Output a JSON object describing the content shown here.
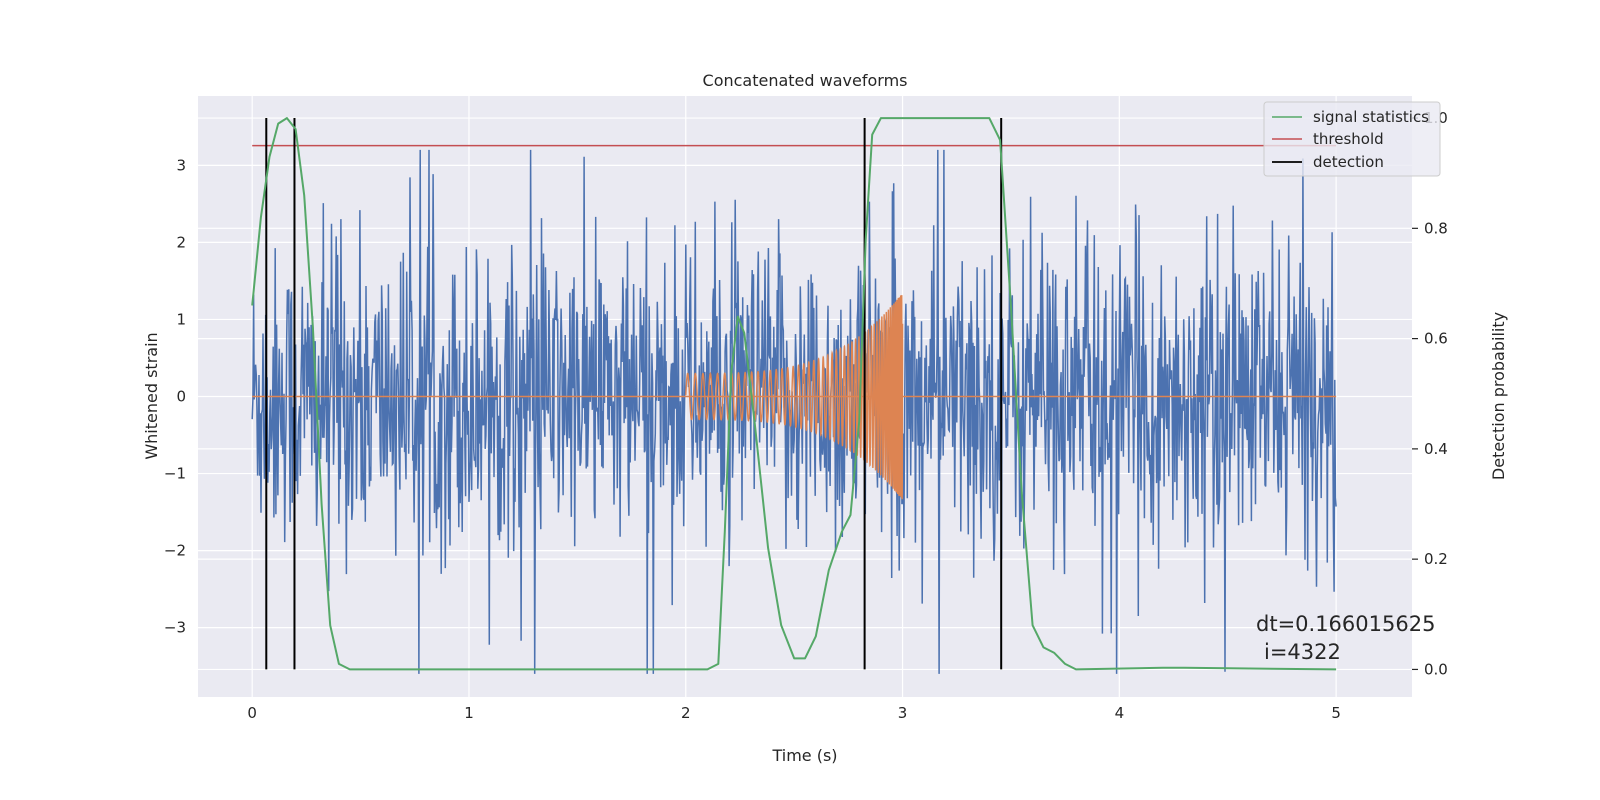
{
  "chart_data": {
    "type": "line",
    "title": "Concatenated waveforms",
    "xlabel": "Time (s)",
    "ylabel": "Whitened strain",
    "y2label": "Detection probability",
    "xlim": [
      -0.25,
      5.35
    ],
    "ylim": [
      -3.9,
      3.9
    ],
    "y2lim": [
      -0.05,
      1.04
    ],
    "xticks": [
      0,
      1,
      2,
      3,
      4,
      5
    ],
    "yticks": [
      -3,
      -2,
      -1,
      0,
      1,
      2,
      3
    ],
    "y2ticks": [
      0.0,
      0.2,
      0.4,
      0.6,
      0.8,
      1.0
    ],
    "xtick_labels": [
      "0",
      "1",
      "2",
      "3",
      "4",
      "5"
    ],
    "ytick_labels": [
      "−3",
      "−2",
      "−1",
      "0",
      "1",
      "2",
      "3"
    ],
    "y2tick_labels": [
      "0.0",
      "0.2",
      "0.4",
      "0.6",
      "0.8",
      "1.0"
    ],
    "grid": true,
    "legend_position": "top-right",
    "legend": [
      {
        "label": "signal statistics",
        "color": "#55a868"
      },
      {
        "label": "threshold",
        "color": "#c44e52"
      },
      {
        "label": "detection",
        "color": "#000000"
      }
    ],
    "noise": {
      "color": "#4c72b0",
      "x_range": [
        0,
        5
      ],
      "approx_amplitude": 2.5,
      "description_values": {
        "typical_peak": 2.2,
        "max_peak": 3.2,
        "min_trough": -3.6
      }
    },
    "chirp": {
      "color": "#dd8452",
      "x_range": [
        2.0,
        3.0
      ],
      "amplitude_start": 0.3,
      "amplitude_end": 1.35,
      "baseline": 0,
      "baseline_range": [
        0,
        5
      ]
    },
    "signal_statistics": {
      "color": "#55a868",
      "axis": "y2",
      "points": [
        [
          0.0,
          0.66
        ],
        [
          0.04,
          0.82
        ],
        [
          0.08,
          0.93
        ],
        [
          0.12,
          0.99
        ],
        [
          0.16,
          1.0
        ],
        [
          0.2,
          0.98
        ],
        [
          0.24,
          0.86
        ],
        [
          0.28,
          0.62
        ],
        [
          0.32,
          0.3
        ],
        [
          0.36,
          0.08
        ],
        [
          0.4,
          0.01
        ],
        [
          0.45,
          0.0
        ],
        [
          2.1,
          0.0
        ],
        [
          2.15,
          0.01
        ],
        [
          2.18,
          0.25
        ],
        [
          2.21,
          0.54
        ],
        [
          2.24,
          0.64
        ],
        [
          2.27,
          0.61
        ],
        [
          2.32,
          0.44
        ],
        [
          2.38,
          0.22
        ],
        [
          2.44,
          0.08
        ],
        [
          2.5,
          0.02
        ],
        [
          2.55,
          0.02
        ],
        [
          2.6,
          0.06
        ],
        [
          2.66,
          0.18
        ],
        [
          2.72,
          0.25
        ],
        [
          2.76,
          0.28
        ],
        [
          2.8,
          0.45
        ],
        [
          2.83,
          0.78
        ],
        [
          2.86,
          0.97
        ],
        [
          2.9,
          1.0
        ],
        [
          3.4,
          1.0
        ],
        [
          3.45,
          0.96
        ],
        [
          3.5,
          0.66
        ],
        [
          3.55,
          0.32
        ],
        [
          3.6,
          0.08
        ],
        [
          3.65,
          0.04
        ],
        [
          3.7,
          0.03
        ],
        [
          3.75,
          0.01
        ],
        [
          3.8,
          0.0
        ],
        [
          4.2,
          0.003
        ],
        [
          4.3,
          0.003
        ],
        [
          5.0,
          0.0
        ]
      ]
    },
    "threshold": {
      "color": "#c44e52",
      "axis": "y2",
      "value": 0.95,
      "x_range": [
        0,
        5
      ]
    },
    "detections": {
      "color": "#000000",
      "axis": "y2",
      "x": [
        0.065,
        0.195,
        2.825,
        3.455
      ],
      "y_range": [
        0.0,
        1.0
      ]
    },
    "annotation": {
      "line1": "dt=0.166015625",
      "line2": "i=4322",
      "x": 4.52,
      "y": -3.0
    }
  }
}
